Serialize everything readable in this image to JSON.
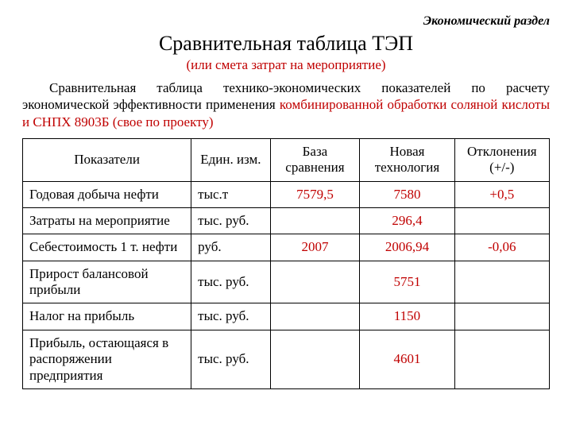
{
  "section_header": "Экономический раздел",
  "title": "Сравнительная таблица ТЭП",
  "subtitle": "(или смета затрат на мероприятие)",
  "intro_black": "Сравнительная таблица технико-экономических показателей по расчету экономической эффективности применения ",
  "intro_red": "комбинированной обработки соляной кислоты и СНПХ 8903Б (свое по проекту)",
  "columns": {
    "indicator": "Показатели",
    "unit": "Един. изм.",
    "base": "База сравнения",
    "new": "Новая технология",
    "deviation": "Отклонения (+/-)"
  },
  "rows": [
    {
      "name": "Годовая добыча нефти",
      "unit": "тыс.т",
      "base": "7579,5",
      "new": "7580",
      "dev": "+0,5"
    },
    {
      "name": "Затраты на мероприятие",
      "unit": "тыс. руб.",
      "base": "",
      "new": "296,4",
      "dev": ""
    },
    {
      "name": "Себестоимость 1 т. нефти",
      "unit": "руб.",
      "base": "2007",
      "new": "2006,94",
      "dev": "-0,06"
    },
    {
      "name": "Прирост балансовой прибыли",
      "unit": "тыс. руб.",
      "base": "",
      "new": "5751",
      "dev": ""
    },
    {
      "name": "Налог на прибыль",
      "unit": "тыс. руб.",
      "base": "",
      "new": "1150",
      "dev": ""
    },
    {
      "name": "Прибыль, остающаяся в распоряжении предприятия",
      "unit": "тыс. руб.",
      "base": "",
      "new": "4601",
      "dev": ""
    }
  ],
  "colors": {
    "accent_red": "#c00000",
    "text": "#000000",
    "border": "#000000",
    "background": "#ffffff"
  },
  "fonts": {
    "family": "Times New Roman",
    "title_pt": 26,
    "body_pt": 17,
    "header_pt": 16
  }
}
